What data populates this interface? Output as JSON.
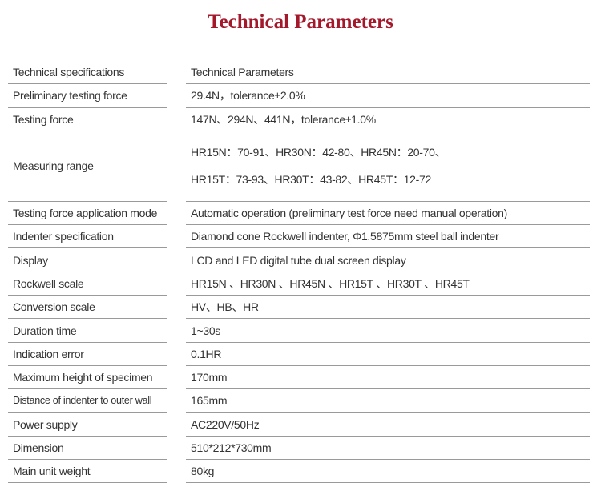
{
  "title": "Technical Parameters",
  "rows": [
    {
      "key": "Technical specifications",
      "value": "Technical Parameters"
    },
    {
      "key": "Preliminary testing force",
      "value": "29.4N，tolerance±2.0%"
    },
    {
      "key": "Testing force",
      "value": "147N、294N、441N，tolerance±1.0%"
    },
    {
      "key": "Measuring range",
      "value_lines": [
        "HR15N：70-91、HR30N：42-80、HR45N：20-70、",
        "HR15T：73-93、HR30T：43-82、HR45T：12-72"
      ]
    },
    {
      "key": "Testing force application mode",
      "value": "Automatic operation (preliminary test force need manual operation)"
    },
    {
      "key": "Indenter specification",
      "value": "Diamond cone Rockwell indenter, Φ1.5875mm steel ball indenter"
    },
    {
      "key": "Display",
      "value": "LCD and LED digital tube dual screen display"
    },
    {
      "key": "Rockwell scale",
      "value": "HR15N 、HR30N 、HR45N 、HR15T 、HR30T 、HR45T"
    },
    {
      "key": "Conversion scale",
      "value": "HV、HB、HR"
    },
    {
      "key": "Duration time",
      "value": "1~30s"
    },
    {
      "key": "Indication error",
      "value": "0.1HR"
    },
    {
      "key": "Maximum height of specimen",
      "value": "170mm"
    },
    {
      "key": "Distance of indenter to outer wall",
      "value": "165mm"
    },
    {
      "key": "Power supply",
      "value": "AC220V/50Hz"
    },
    {
      "key": "Dimension",
      "value": "510*212*730mm"
    },
    {
      "key": "Main unit weight",
      "value": "80kg"
    }
  ]
}
